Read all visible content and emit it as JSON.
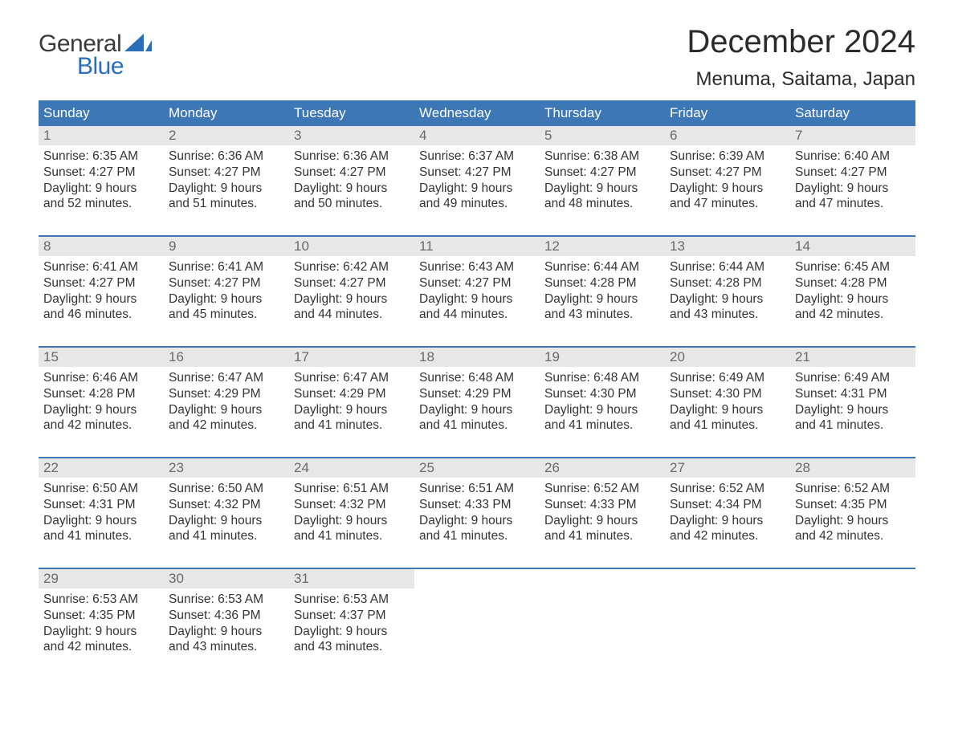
{
  "logo": {
    "word1": "General",
    "word2": "Blue",
    "sail_color": "#2a6eb8",
    "text_dark": "#3b3b3b"
  },
  "title": "December 2024",
  "location": "Menuma, Saitama, Japan",
  "colors": {
    "header_bg": "#3d77b6",
    "header_fg": "#ffffff",
    "daynum_bg": "#e7e7e7",
    "daynum_fg": "#6a6a6a",
    "body_fg": "#333333",
    "rule": "#3d77b6",
    "page_bg": "#ffffff"
  },
  "dow": [
    "Sunday",
    "Monday",
    "Tuesday",
    "Wednesday",
    "Thursday",
    "Friday",
    "Saturday"
  ],
  "weeks": [
    [
      {
        "n": "1",
        "sr": "Sunrise: 6:35 AM",
        "ss": "Sunset: 4:27 PM",
        "dl": "Daylight: 9 hours and 52 minutes."
      },
      {
        "n": "2",
        "sr": "Sunrise: 6:36 AM",
        "ss": "Sunset: 4:27 PM",
        "dl": "Daylight: 9 hours and 51 minutes."
      },
      {
        "n": "3",
        "sr": "Sunrise: 6:36 AM",
        "ss": "Sunset: 4:27 PM",
        "dl": "Daylight: 9 hours and 50 minutes."
      },
      {
        "n": "4",
        "sr": "Sunrise: 6:37 AM",
        "ss": "Sunset: 4:27 PM",
        "dl": "Daylight: 9 hours and 49 minutes."
      },
      {
        "n": "5",
        "sr": "Sunrise: 6:38 AM",
        "ss": "Sunset: 4:27 PM",
        "dl": "Daylight: 9 hours and 48 minutes."
      },
      {
        "n": "6",
        "sr": "Sunrise: 6:39 AM",
        "ss": "Sunset: 4:27 PM",
        "dl": "Daylight: 9 hours and 47 minutes."
      },
      {
        "n": "7",
        "sr": "Sunrise: 6:40 AM",
        "ss": "Sunset: 4:27 PM",
        "dl": "Daylight: 9 hours and 47 minutes."
      }
    ],
    [
      {
        "n": "8",
        "sr": "Sunrise: 6:41 AM",
        "ss": "Sunset: 4:27 PM",
        "dl": "Daylight: 9 hours and 46 minutes."
      },
      {
        "n": "9",
        "sr": "Sunrise: 6:41 AM",
        "ss": "Sunset: 4:27 PM",
        "dl": "Daylight: 9 hours and 45 minutes."
      },
      {
        "n": "10",
        "sr": "Sunrise: 6:42 AM",
        "ss": "Sunset: 4:27 PM",
        "dl": "Daylight: 9 hours and 44 minutes."
      },
      {
        "n": "11",
        "sr": "Sunrise: 6:43 AM",
        "ss": "Sunset: 4:27 PM",
        "dl": "Daylight: 9 hours and 44 minutes."
      },
      {
        "n": "12",
        "sr": "Sunrise: 6:44 AM",
        "ss": "Sunset: 4:28 PM",
        "dl": "Daylight: 9 hours and 43 minutes."
      },
      {
        "n": "13",
        "sr": "Sunrise: 6:44 AM",
        "ss": "Sunset: 4:28 PM",
        "dl": "Daylight: 9 hours and 43 minutes."
      },
      {
        "n": "14",
        "sr": "Sunrise: 6:45 AM",
        "ss": "Sunset: 4:28 PM",
        "dl": "Daylight: 9 hours and 42 minutes."
      }
    ],
    [
      {
        "n": "15",
        "sr": "Sunrise: 6:46 AM",
        "ss": "Sunset: 4:28 PM",
        "dl": "Daylight: 9 hours and 42 minutes."
      },
      {
        "n": "16",
        "sr": "Sunrise: 6:47 AM",
        "ss": "Sunset: 4:29 PM",
        "dl": "Daylight: 9 hours and 42 minutes."
      },
      {
        "n": "17",
        "sr": "Sunrise: 6:47 AM",
        "ss": "Sunset: 4:29 PM",
        "dl": "Daylight: 9 hours and 41 minutes."
      },
      {
        "n": "18",
        "sr": "Sunrise: 6:48 AM",
        "ss": "Sunset: 4:29 PM",
        "dl": "Daylight: 9 hours and 41 minutes."
      },
      {
        "n": "19",
        "sr": "Sunrise: 6:48 AM",
        "ss": "Sunset: 4:30 PM",
        "dl": "Daylight: 9 hours and 41 minutes."
      },
      {
        "n": "20",
        "sr": "Sunrise: 6:49 AM",
        "ss": "Sunset: 4:30 PM",
        "dl": "Daylight: 9 hours and 41 minutes."
      },
      {
        "n": "21",
        "sr": "Sunrise: 6:49 AM",
        "ss": "Sunset: 4:31 PM",
        "dl": "Daylight: 9 hours and 41 minutes."
      }
    ],
    [
      {
        "n": "22",
        "sr": "Sunrise: 6:50 AM",
        "ss": "Sunset: 4:31 PM",
        "dl": "Daylight: 9 hours and 41 minutes."
      },
      {
        "n": "23",
        "sr": "Sunrise: 6:50 AM",
        "ss": "Sunset: 4:32 PM",
        "dl": "Daylight: 9 hours and 41 minutes."
      },
      {
        "n": "24",
        "sr": "Sunrise: 6:51 AM",
        "ss": "Sunset: 4:32 PM",
        "dl": "Daylight: 9 hours and 41 minutes."
      },
      {
        "n": "25",
        "sr": "Sunrise: 6:51 AM",
        "ss": "Sunset: 4:33 PM",
        "dl": "Daylight: 9 hours and 41 minutes."
      },
      {
        "n": "26",
        "sr": "Sunrise: 6:52 AM",
        "ss": "Sunset: 4:33 PM",
        "dl": "Daylight: 9 hours and 41 minutes."
      },
      {
        "n": "27",
        "sr": "Sunrise: 6:52 AM",
        "ss": "Sunset: 4:34 PM",
        "dl": "Daylight: 9 hours and 42 minutes."
      },
      {
        "n": "28",
        "sr": "Sunrise: 6:52 AM",
        "ss": "Sunset: 4:35 PM",
        "dl": "Daylight: 9 hours and 42 minutes."
      }
    ],
    [
      {
        "n": "29",
        "sr": "Sunrise: 6:53 AM",
        "ss": "Sunset: 4:35 PM",
        "dl": "Daylight: 9 hours and 42 minutes."
      },
      {
        "n": "30",
        "sr": "Sunrise: 6:53 AM",
        "ss": "Sunset: 4:36 PM",
        "dl": "Daylight: 9 hours and 43 minutes."
      },
      {
        "n": "31",
        "sr": "Sunrise: 6:53 AM",
        "ss": "Sunset: 4:37 PM",
        "dl": "Daylight: 9 hours and 43 minutes."
      },
      null,
      null,
      null,
      null
    ]
  ]
}
